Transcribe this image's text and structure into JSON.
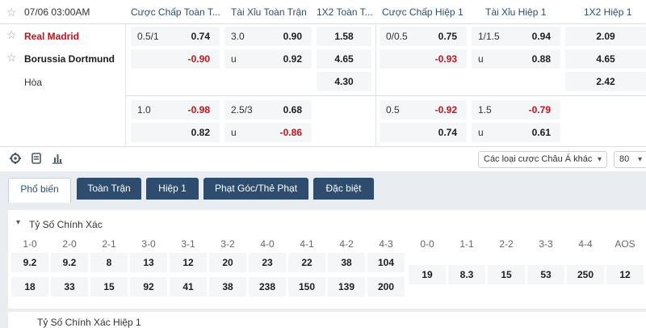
{
  "match": {
    "datetime": "07/06 03:00AM",
    "home": "Real Madrid",
    "away": "Borussia Dortmund",
    "draw": "Hòa"
  },
  "headers": {
    "hcap_ft": "Cược Chấp Toàn T...",
    "ou_ft": "Tài Xỉu Toàn Trận",
    "x12_ft": "1X2 Toàn T...",
    "hcap_h1": "Cược Chấp Hiệp 1",
    "ou_h1": "Tài Xỉu Hiệp 1",
    "x12_h1": "1X2 Hiệp 1"
  },
  "odds": {
    "r1": {
      "hcap_ft": {
        "line": "0.5/1",
        "home": "0.74",
        "away": "-0.90"
      },
      "ou_ft": {
        "line": "3.0",
        "over": "0.90",
        "under_label": "u",
        "under": "0.92"
      },
      "x12_ft": {
        "home": "1.58",
        "away": "4.65",
        "draw": "4.30"
      },
      "hcap_h1": {
        "line": "0/0.5",
        "home": "0.75",
        "away": "-0.93"
      },
      "ou_h1": {
        "line": "1/1.5",
        "over": "0.94",
        "under_label": "u",
        "under": "0.88"
      },
      "x12_h1": {
        "home": "2.09",
        "away": "4.65",
        "draw": "2.42"
      }
    },
    "r2": {
      "hcap_ft": {
        "line": "1.0",
        "home": "-0.98",
        "away": "0.82"
      },
      "ou_ft": {
        "line": "2.5/3",
        "over": "0.68",
        "under_label": "u",
        "under": "-0.86"
      },
      "hcap_h1": {
        "line": "0.5",
        "home": "-0.92",
        "away": "0.74"
      },
      "ou_h1": {
        "line": "1.5",
        "over": "-0.79",
        "under_label": "u",
        "under": "0.61"
      }
    }
  },
  "toolbar": {
    "icons": [
      "gear-icon",
      "list-icon",
      "stats-icon"
    ],
    "market_select": "Các loại cược Châu Á khác",
    "page_size": "80"
  },
  "tabs": [
    "Phổ biến",
    "Toàn Trận",
    "Hiệp 1",
    "Phạt Góc/Thẻ Phạt",
    "Đặc biệt"
  ],
  "correct_score": {
    "title": "Tỷ Số Chính Xác",
    "home_win_labels": [
      "1-0",
      "2-0",
      "2-1",
      "3-0",
      "3-1",
      "3-2",
      "4-0",
      "4-1",
      "4-2",
      "4-3"
    ],
    "home_win_odds": [
      "9.2",
      "9.2",
      "8",
      "13",
      "12",
      "20",
      "23",
      "22",
      "38",
      "104"
    ],
    "away_win_odds": [
      "18",
      "33",
      "15",
      "92",
      "41",
      "38",
      "238",
      "150",
      "139",
      "200"
    ],
    "draw_labels": [
      "0-0",
      "1-1",
      "2-2",
      "3-3",
      "4-4",
      "AOS"
    ],
    "draw_odds": [
      "19",
      "8.3",
      "15",
      "53",
      "250",
      "12"
    ]
  },
  "correct_score_h1": {
    "title": "Tỷ Số Chính Xác Hiệp 1"
  },
  "colors": {
    "home_team": "#c0151d",
    "negative_odds": "#c0151d",
    "tab_inactive": "#2e4d6e",
    "header_text": "#2b4e72"
  }
}
